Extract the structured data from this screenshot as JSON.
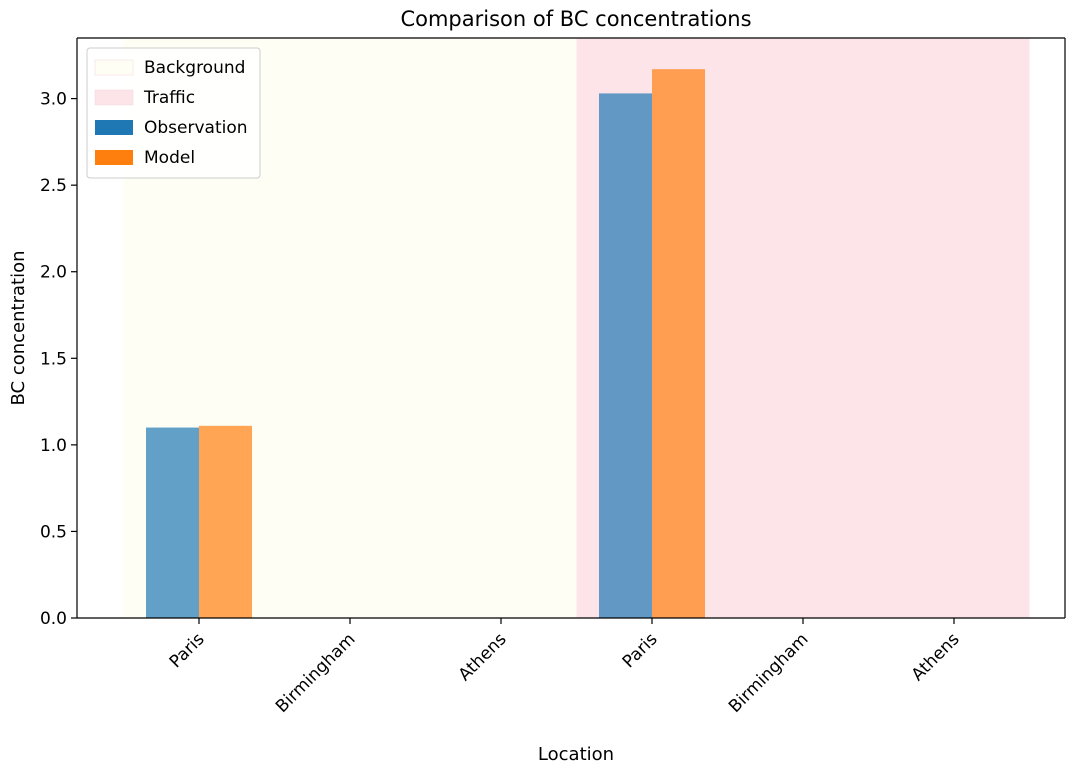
{
  "chart_data": {
    "type": "bar",
    "title": "Comparison of BC concentrations",
    "xlabel": "Location",
    "ylabel": "BC concentration",
    "categories": [
      "Paris",
      "Birmingham",
      "Athens",
      "Paris",
      "Birmingham",
      "Athens"
    ],
    "regions": [
      {
        "name": "Background",
        "color": "#fffef4",
        "categories": [
          0,
          1,
          2
        ]
      },
      {
        "name": "Traffic",
        "color": "#fde4e9",
        "categories": [
          3,
          4,
          5
        ]
      }
    ],
    "series": [
      {
        "name": "Observation",
        "color": "#1f77b4",
        "values": [
          1.1,
          0,
          0,
          3.03,
          0,
          0
        ]
      },
      {
        "name": "Model",
        "color": "#ff7f0e",
        "values": [
          1.11,
          0,
          0,
          3.17,
          0,
          0
        ]
      }
    ],
    "ylim": [
      0,
      3.35
    ],
    "yticks": [
      "0.0",
      "0.5",
      "1.0",
      "1.5",
      "2.0",
      "2.5",
      "3.0"
    ],
    "legend_position": "top-left",
    "grid": false
  }
}
